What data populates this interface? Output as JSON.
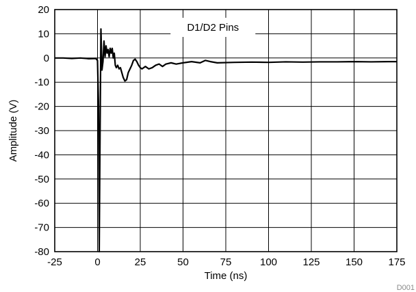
{
  "chart_data": {
    "type": "line",
    "title": "",
    "xlabel": "Time (ns)",
    "ylabel": "Amplitude (V)",
    "xlim": [
      -25,
      175
    ],
    "ylim": [
      -80,
      20
    ],
    "xticks": [
      -25,
      0,
      25,
      50,
      75,
      100,
      125,
      150,
      175
    ],
    "yticks": [
      20,
      10,
      0,
      -10,
      -20,
      -30,
      -40,
      -50,
      -60,
      -70,
      -80
    ],
    "grid": true,
    "legend": "none",
    "annotation": "D1/D2 Pins",
    "figure_code": "D001",
    "line_color": "#000000",
    "series": [
      {
        "x": [
          -25,
          -20,
          -15,
          -10,
          -5,
          -1,
          0,
          0.6,
          1.0,
          1.4,
          2.0,
          2.6,
          3.2,
          3.8,
          4.4,
          5.0,
          5.6,
          6.2,
          6.8,
          7.4,
          8.0,
          8.6,
          9.2,
          9.8,
          10.4,
          11.0,
          11.8,
          12.6,
          13.4,
          14.2,
          15.0,
          16.0,
          17.0,
          18.0,
          19.0,
          20.0,
          21.0,
          22.0,
          23.0,
          24.0,
          25.0,
          26.0,
          28.0,
          30.0,
          32.0,
          34.0,
          36.0,
          38.0,
          40.0,
          43.0,
          46.0,
          50.0,
          55.0,
          60.0,
          63.0,
          66.0,
          70.0,
          80.0,
          90.0,
          100.0,
          110.0,
          120.0,
          130.0,
          140.0,
          150.0,
          160.0,
          170.0,
          175.0
        ],
        "y": [
          0,
          0,
          -0.2,
          0,
          -0.3,
          -0.2,
          -1.0,
          -20.0,
          -80.0,
          -40.0,
          12.0,
          -5.0,
          -1.5,
          7.0,
          0.5,
          5.0,
          2.0,
          3.5,
          0.5,
          4.0,
          2.0,
          4.0,
          0.0,
          2.0,
          -3.0,
          -4.0,
          -3.0,
          -4.5,
          -4.0,
          -6.0,
          -8.0,
          -9.5,
          -9.0,
          -6.0,
          -4.5,
          -3.0,
          -1.0,
          -0.5,
          -1.5,
          -3.0,
          -4.0,
          -4.5,
          -3.5,
          -4.5,
          -4.0,
          -3.0,
          -2.5,
          -3.5,
          -2.5,
          -2.0,
          -2.5,
          -2.0,
          -1.5,
          -2.0,
          -1.0,
          -1.5,
          -2.0,
          -1.8,
          -1.7,
          -1.8,
          -1.6,
          -1.7,
          -1.6,
          -1.6,
          -1.5,
          -1.6,
          -1.5,
          -1.5
        ]
      }
    ]
  }
}
